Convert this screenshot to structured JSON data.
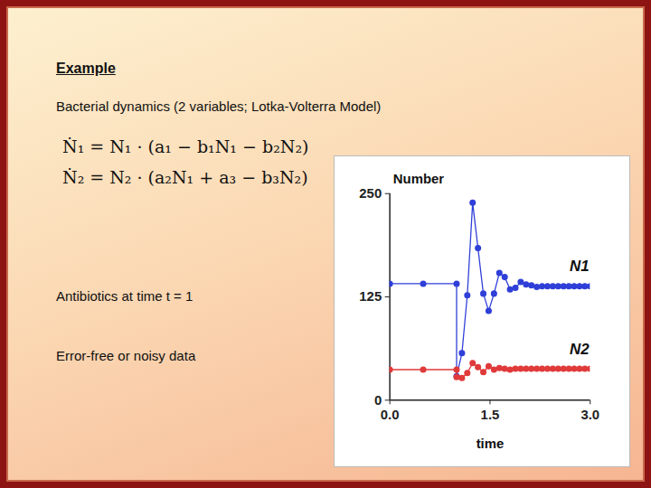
{
  "slide": {
    "title": "Example",
    "subtitle": "Bacterial dynamics (2 variables; Lotka-Volterra Model)",
    "equations": [
      "Ṅ₁ = N₁ · (a₁ − b₁N₁ − b₂N₂)",
      "Ṅ₂ = N₂ · (a₂N₁ + a₃ − b₃N₂)"
    ],
    "notes": [
      "Antibiotics at time t = 1",
      "Error-free or noisy data"
    ]
  },
  "chart_data": {
    "type": "line",
    "x_label": "time",
    "y_label": "Number",
    "x": [
      0,
      0.5,
      1,
      1,
      1.08,
      1.16,
      1.24,
      1.32,
      1.4,
      1.48,
      1.56,
      1.64,
      1.72,
      1.8,
      1.88,
      1.96,
      2.04,
      2.12,
      2.2,
      2.28,
      2.36,
      2.44,
      2.52,
      2.6,
      2.68,
      2.76,
      2.84,
      2.92,
      3
    ],
    "series": [
      {
        "name": "N1",
        "color": "#2f3fd8",
        "marker": "circle",
        "values": [
          141,
          141,
          141,
          29,
          57,
          127,
          239,
          184,
          129,
          108,
          129,
          154,
          149,
          134,
          136,
          143,
          140,
          139,
          137,
          138,
          138,
          138,
          138,
          138,
          138,
          138,
          138,
          138,
          138
        ]
      },
      {
        "name": "N2",
        "color": "#e03a3a",
        "marker": "circle",
        "values": [
          37,
          37,
          37,
          28,
          27,
          33,
          45,
          40,
          34,
          41,
          37,
          39,
          38,
          37,
          38,
          38,
          38,
          38,
          38,
          38,
          38,
          38,
          38,
          38,
          38,
          38,
          38,
          38,
          38
        ]
      }
    ],
    "xlim": [
      0,
      3
    ],
    "ylim": [
      0,
      250
    ],
    "xticks": [
      0,
      1.5,
      3
    ],
    "yticks": [
      0,
      125,
      250
    ],
    "grid": false
  }
}
